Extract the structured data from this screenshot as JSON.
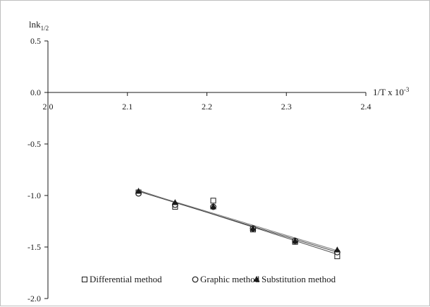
{
  "chart_data": {
    "type": "scatter",
    "ylabel_main": "lnk",
    "ylabel_sub": "1/2",
    "xlabel_main": "1/T x 10",
    "xlabel_sup": "-3",
    "xlim": [
      2.0,
      2.4
    ],
    "ylim": [
      -2.0,
      0.5
    ],
    "x_ticks": [
      "2.0",
      "2.1",
      "2.2",
      "2.3",
      "2.4"
    ],
    "y_ticks": [
      "0.5",
      "0.0",
      "-0.5",
      "-1.0",
      "-1.5",
      "-2.0"
    ],
    "x_tick_values": [
      2.0,
      2.1,
      2.2,
      2.3,
      2.4
    ],
    "y_tick_values": [
      0.5,
      0.0,
      -0.5,
      -1.0,
      -1.5,
      -2.0
    ],
    "legend_position": "bottom",
    "series": [
      {
        "name": "Differential method",
        "marker": "square",
        "x": [
          2.114,
          2.16,
          2.208,
          2.258,
          2.311,
          2.364
        ],
        "y": [
          -0.97,
          -1.11,
          -1.05,
          -1.33,
          -1.45,
          -1.59
        ],
        "fit": {
          "x": [
            2.114,
            2.364
          ],
          "y": [
            -0.95,
            -1.57
          ]
        }
      },
      {
        "name": "Graphic method",
        "marker": "circle",
        "x": [
          2.114,
          2.16,
          2.208,
          2.258,
          2.311,
          2.364
        ],
        "y": [
          -0.98,
          -1.09,
          -1.11,
          -1.32,
          -1.44,
          -1.55
        ],
        "fit": {
          "x": [
            2.114,
            2.364
          ],
          "y": [
            -0.96,
            -1.55
          ]
        }
      },
      {
        "name": "Substitution method",
        "marker": "triangle",
        "x": [
          2.114,
          2.16,
          2.208,
          2.258,
          2.311,
          2.364
        ],
        "y": [
          -0.96,
          -1.07,
          -1.11,
          -1.32,
          -1.44,
          -1.53
        ],
        "fit": {
          "x": [
            2.114,
            2.364
          ],
          "y": [
            -0.955,
            -1.535
          ]
        }
      }
    ]
  }
}
